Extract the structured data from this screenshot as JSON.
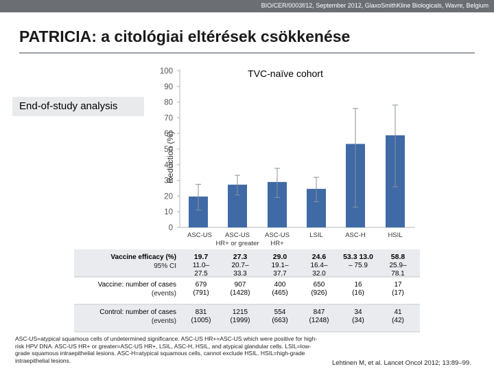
{
  "header": {
    "source_line": "BIO/CER/0003f/12, September 2012, GlaxoSmithKline Biologicals, Wavre, Belgium"
  },
  "page": {
    "title": "PATRICIA: a citológiai eltérések csökkenése",
    "subtitle_box": "End-of-study analysis"
  },
  "chart_data": {
    "type": "bar",
    "title": "TVC-naïve cohort",
    "ylabel": "Reduction (%)",
    "xlabel": "",
    "ylim": [
      0,
      100
    ],
    "yticks": [
      0,
      10,
      20,
      30,
      40,
      50,
      60,
      70,
      80,
      90,
      100
    ],
    "categories": [
      [
        "ASC-US"
      ],
      [
        "ASC-US",
        "HR+ or greater"
      ],
      [
        "ASC-US",
        "HR+"
      ],
      [
        "LSIL"
      ],
      [
        "ASC-H"
      ],
      [
        "HSIL"
      ]
    ],
    "values": [
      19.7,
      27.3,
      29.0,
      24.6,
      53.3,
      58.8
    ],
    "ci_low": [
      11.0,
      20.7,
      19.1,
      16.4,
      13.0,
      25.9
    ],
    "ci_high": [
      27.5,
      33.3,
      37.7,
      32.0,
      75.9,
      78.1
    ],
    "bar_color": "#3f6aa6",
    "grid": false,
    "legend": "none"
  },
  "table": {
    "rows": [
      {
        "label": "Vaccine efficacy (%)",
        "sublabel": "95% CI",
        "cells": [
          [
            "19.7",
            "11.0–",
            "27.5"
          ],
          [
            "27.3",
            "20.7–",
            "33.3"
          ],
          [
            "29.0",
            "19.1–",
            "37.7"
          ],
          [
            "24.6",
            "16.4–",
            "32.0"
          ],
          [
            "53.3 13.0",
            "– 75.9",
            ""
          ],
          [
            "58.8",
            "25.9–",
            "78.1"
          ]
        ]
      },
      {
        "label": "Vaccine: number of cases",
        "sublabel": "(events)",
        "cells": [
          [
            "679",
            "(791)"
          ],
          [
            "907",
            "(1428)"
          ],
          [
            "400",
            "(465)"
          ],
          [
            "650",
            "(926)"
          ],
          [
            "16",
            "(16)"
          ],
          [
            "17",
            "(17)"
          ]
        ]
      },
      {
        "label": "Control: number of cases",
        "sublabel": "(events)",
        "cells": [
          [
            "831",
            "(1005)"
          ],
          [
            "1215",
            "(1999)"
          ],
          [
            "554",
            "(663)"
          ],
          [
            "847",
            "(1248)"
          ],
          [
            "34",
            "(34)"
          ],
          [
            "41",
            "(42)"
          ]
        ]
      }
    ],
    "colors": {
      "row_odd": "#e9ebee",
      "row_even": "#ffffff",
      "divider": "#c5cad0"
    }
  },
  "footnote": "ASC-US=atypical squamous cells of undetermined significance. ASC-US HR+=ASC-US which were positive for high-risk HPV DNA. ASC-US HR+ or greater=ASC-US HR+, LSIL, ASC-H, HSIL, and atypical glandular cells. LSIL=low-grade squamous intraepithelial lesions. ASC-H=atypical squamous cells, cannot exclude HSIL. HSIL=high-grade intraepithelial lesions.",
  "reference": "Lehtinen M, et al. Lancet Oncol 2012; 13:89–99."
}
